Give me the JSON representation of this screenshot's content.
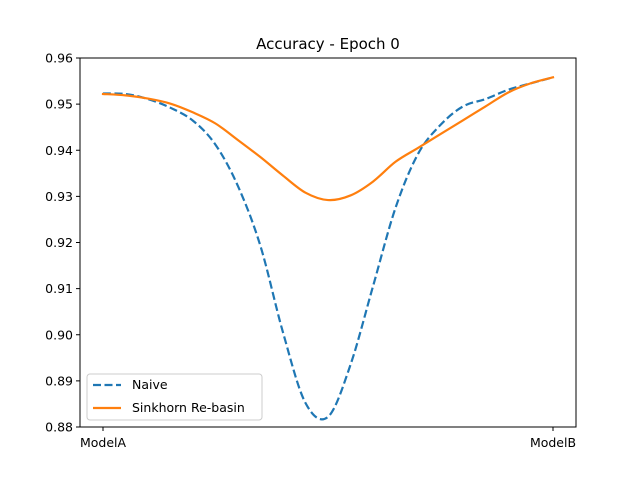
{
  "chart_data": {
    "type": "line",
    "title": "Accuracy - Epoch 0",
    "xlabel": "",
    "ylabel": "",
    "xlim": [
      0,
      1
    ],
    "ylim": [
      0.88,
      0.96
    ],
    "x_ticks": [
      {
        "value": 0,
        "label": "ModelA"
      },
      {
        "value": 1,
        "label": "ModelB"
      }
    ],
    "y_ticks": [
      0.88,
      0.89,
      0.9,
      0.91,
      0.92,
      0.93,
      0.94,
      0.95,
      0.96
    ],
    "y_tick_labels": [
      "0.88",
      "0.89",
      "0.90",
      "0.91",
      "0.92",
      "0.93",
      "0.94",
      "0.95",
      "0.96"
    ],
    "grid": false,
    "legend_position": "lower-left",
    "x": [
      0.0,
      0.05,
      0.1,
      0.15,
      0.2,
      0.25,
      0.3,
      0.35,
      0.4,
      0.45,
      0.5,
      0.55,
      0.6,
      0.65,
      0.7,
      0.75,
      0.8,
      0.85,
      0.9,
      0.95,
      1.0
    ],
    "series": [
      {
        "name": "Naive",
        "color": "#1f77b4",
        "style": "dashed",
        "values": [
          0.9523,
          0.9522,
          0.9511,
          0.9492,
          0.9464,
          0.9412,
          0.9322,
          0.9192,
          0.9005,
          0.8852,
          0.8822,
          0.8935,
          0.9105,
          0.9275,
          0.9392,
          0.9455,
          0.9495,
          0.9511,
          0.9531,
          0.9545,
          0.9558
        ]
      },
      {
        "name": "Sinkhorn Re-basin",
        "color": "#ff7f0e",
        "style": "solid",
        "values": [
          0.9522,
          0.9519,
          0.9512,
          0.9501,
          0.9482,
          0.9458,
          0.9422,
          0.9385,
          0.9345,
          0.9308,
          0.9292,
          0.9302,
          0.9332,
          0.9375,
          0.9405,
          0.9435,
          0.9465,
          0.9495,
          0.9525,
          0.9545,
          0.9558
        ]
      }
    ]
  }
}
